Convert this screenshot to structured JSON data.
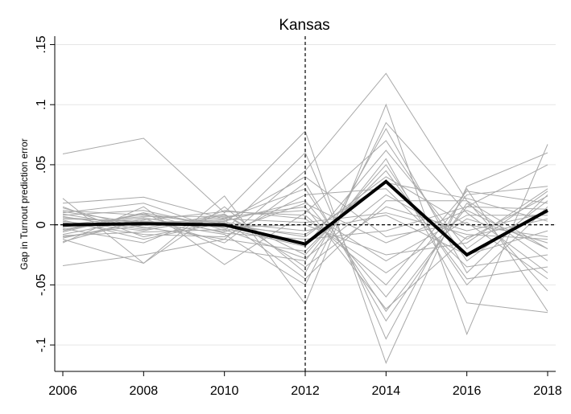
{
  "chart_data": {
    "type": "line",
    "title": "Kansas",
    "xlabel": "",
    "ylabel": "Gap in Turnout prediction error",
    "x": [
      2006,
      2008,
      2010,
      2012,
      2014,
      2016,
      2018
    ],
    "x_tick_labels": [
      "2006",
      "2008",
      "2010",
      "2012",
      "2014",
      "2016",
      "2018"
    ],
    "xlim": [
      2006,
      2018
    ],
    "ylim": [
      -0.122,
      0.157
    ],
    "y_ticks": [
      -0.1,
      -0.05,
      0,
      0.05,
      0.1,
      0.15
    ],
    "y_tick_labels": [
      "-.1",
      "-.05",
      "0",
      ".05",
      ".1",
      ".15"
    ],
    "treatment_line_x": 2012,
    "reference_line_y": 0,
    "grid": "horizontal",
    "legend": "none",
    "colors": {
      "treated": "#000000",
      "placebo": "#a9a9a9",
      "grid": "#e6e6e6"
    },
    "treated": {
      "values": [
        0.0,
        0.001,
        0.0,
        -0.016,
        0.036,
        -0.025,
        0.012
      ]
    },
    "placebos": [
      [
        0.059,
        0.072,
        0.01,
        0.078,
        -0.115,
        0.032,
        0.06
      ],
      [
        -0.034,
        -0.025,
        -0.012,
        0.045,
        0.126,
        0.02,
        -0.02
      ],
      [
        0.022,
        -0.032,
        0.024,
        -0.066,
        0.1,
        -0.091,
        0.067
      ],
      [
        0.018,
        0.023,
        0.005,
        0.03,
        -0.072,
        0.015,
        0.05
      ],
      [
        -0.012,
        -0.032,
        0.015,
        -0.04,
        0.08,
        -0.04,
        0.025
      ],
      [
        0.01,
        0.018,
        -0.005,
        0.06,
        -0.095,
        0.03,
        -0.072
      ],
      [
        -0.005,
        0.01,
        -0.02,
        -0.03,
        0.055,
        -0.065,
        -0.073
      ],
      [
        0.015,
        -0.01,
        0.003,
        0.02,
        -0.06,
        0.025,
        0.032
      ],
      [
        0.005,
        0.003,
        -0.008,
        -0.05,
        0.085,
        0.01,
        -0.04
      ],
      [
        -0.015,
        0.015,
        -0.033,
        0.01,
        0.07,
        -0.03,
        0.02
      ],
      [
        0.003,
        -0.005,
        0.008,
        -0.025,
        0.05,
        -0.05,
        0.015
      ],
      [
        -0.008,
        0.005,
        -0.015,
        0.035,
        -0.08,
        0.018,
        -0.03
      ],
      [
        0.012,
        0.008,
        0.001,
        -0.01,
        0.04,
        0.0,
        -0.01
      ],
      [
        -0.003,
        -0.015,
        0.012,
        0.005,
        -0.04,
        0.005,
        -0.015
      ],
      [
        0.008,
        0.012,
        -0.003,
        -0.018,
        0.062,
        -0.02,
        0.028
      ],
      [
        -0.01,
        0.0,
        0.006,
        0.015,
        -0.07,
        -0.01,
        0.005
      ],
      [
        0.002,
        -0.008,
        -0.01,
        0.025,
        0.03,
        -0.035,
        -0.025
      ],
      [
        0.006,
        0.002,
        0.004,
        -0.045,
        0.02,
        0.02,
        -0.055
      ],
      [
        -0.006,
        0.01,
        -0.002,
        0.0,
        -0.025,
        -0.015,
        0.03
      ],
      [
        0.014,
        -0.003,
        0.009,
        -0.035,
        0.015,
        -0.005,
        0.01
      ],
      [
        -0.002,
        0.006,
        -0.006,
        0.018,
        -0.015,
        0.012,
        -0.02
      ],
      [
        0.004,
        -0.012,
        0.002,
        -0.005,
        0.008,
        -0.025,
        -0.005
      ],
      [
        -0.014,
        0.004,
        0.011,
        0.008,
        -0.05,
        0.028,
        0.018
      ],
      [
        0.009,
        -0.002,
        -0.012,
        -0.022,
        0.045,
        -0.045,
        -0.035
      ],
      [
        0.0,
        0.007,
        0.007,
        0.012,
        -0.03,
        0.008,
        0.008
      ],
      [
        -0.009,
        -0.006,
        -0.004,
        -0.028,
        0.025,
        -0.012,
        0.024
      ],
      [
        0.011,
        0.001,
        0.003,
        0.04,
        -0.01,
        0.002,
        -0.045
      ],
      [
        -0.004,
        0.009,
        -0.007,
        -0.012,
        -0.005,
        0.015,
        0.013
      ],
      [
        0.007,
        -0.004,
        0.005,
        0.002,
        0.01,
        -0.008,
        -0.012
      ],
      [
        -0.011,
        0.003,
        -0.001,
        -0.008,
        0.035,
        0.022,
        0.003
      ]
    ]
  }
}
